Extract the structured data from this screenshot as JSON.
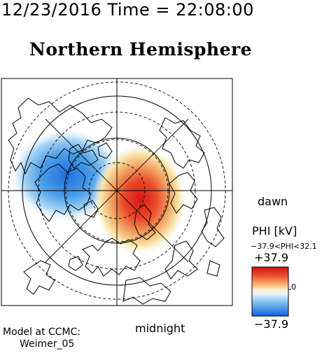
{
  "header": {
    "date": "12/23/2016",
    "time_text": "Time = 22:08:00"
  },
  "map": {
    "title": "Northern Hemisphere",
    "labels": {
      "dawn": "dawn",
      "midnight": "midnight"
    },
    "model": {
      "line1": "Model at CCMC:",
      "line2": "Weimer_05"
    }
  },
  "colorbar": {
    "title": "PHI [kV]",
    "range_text": "−37.9<PHI<32.1",
    "max_label": "+37.9",
    "min_label": "−37.9",
    "zero_label": "0",
    "min_value": -37.9,
    "max_value": 32.1,
    "negative_color": "#2080e0",
    "positive_color": "#e02020"
  }
}
